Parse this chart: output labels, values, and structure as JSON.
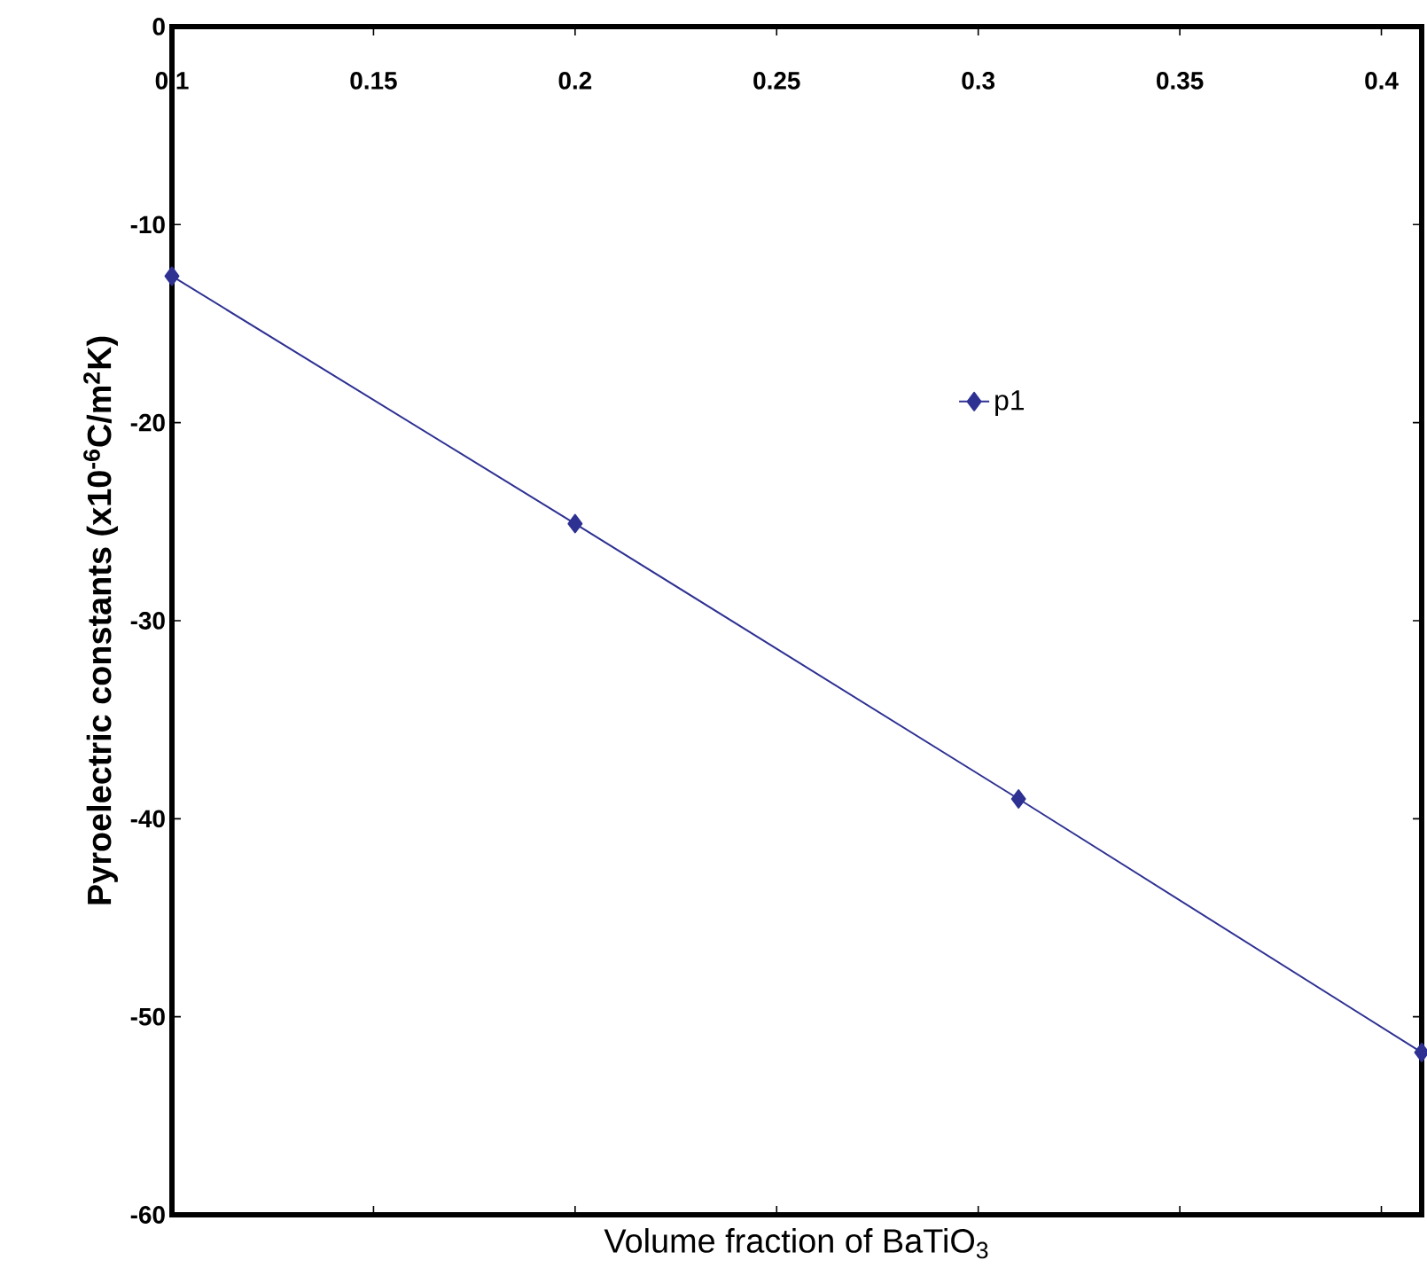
{
  "chart_data": {
    "type": "line",
    "xlabel": "Volume fraction of BaTiO$_{3}$",
    "ylabel": "Pyroelectric constants (x10$^{-6}$C/m$^{2}$K)",
    "x": [
      0.1,
      0.2,
      0.31,
      0.41
    ],
    "series": [
      {
        "name": "p1",
        "color": "#2e3192",
        "values": [
          -12.6,
          -25.1,
          -39.0,
          -51.8
        ]
      }
    ],
    "xlim": [
      0.1,
      0.41
    ],
    "xticks": [
      0.1,
      0.15,
      0.2,
      0.25,
      0.3,
      0.35,
      0.4
    ],
    "ylim": [
      -60,
      0
    ],
    "yticks": [
      -60,
      -50,
      -40,
      -30,
      -20,
      -10,
      0
    ],
    "marker": "diamond",
    "line_style": "solid",
    "legend": "top right",
    "grid": false
  }
}
